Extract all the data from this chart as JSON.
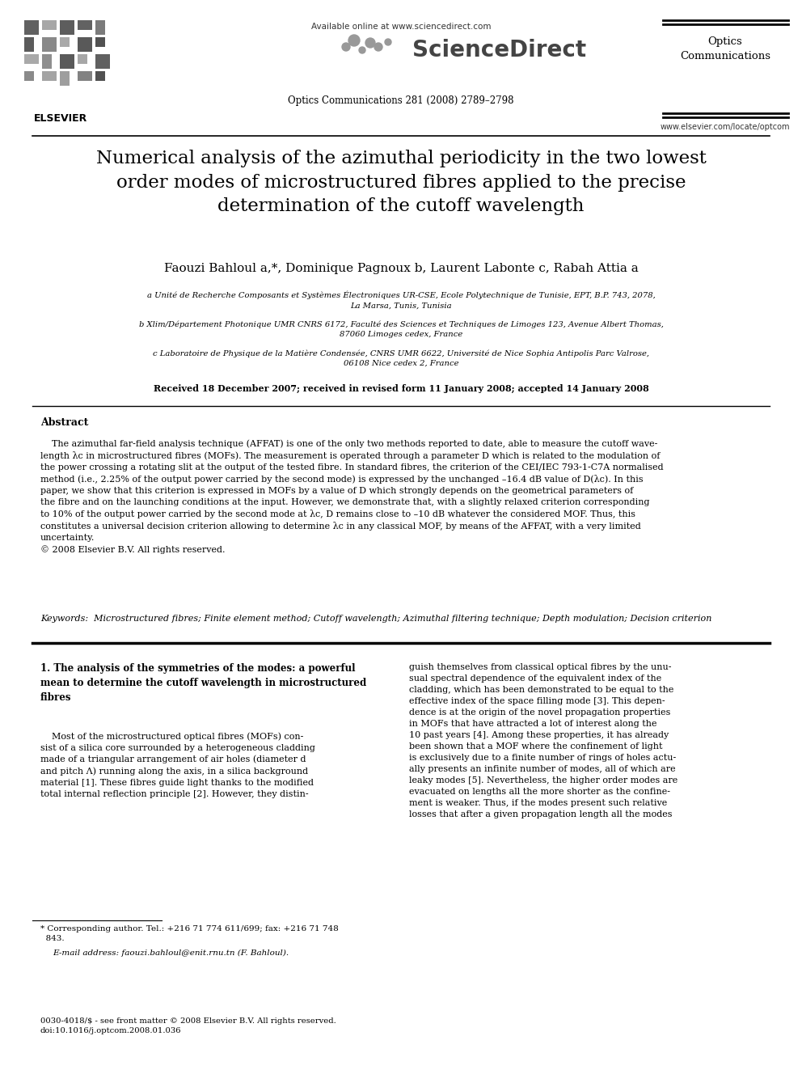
{
  "bg_color": "#ffffff",
  "available_online": "Available online at www.sciencedirect.com",
  "journal_info": "Optics Communications 281 (2008) 2789–2798",
  "optics_line1": "Optics",
  "optics_line2": "Communications",
  "website": "www.elsevier.com/locate/optcom",
  "title": "Numerical analysis of the azimuthal periodicity in the two lowest\norder modes of microstructured fibres applied to the precise\ndetermination of the cutoff wavelength",
  "authors": "Faouzi Bahloul a,*, Dominique Pagnoux b, Laurent Labonte c, Rabah Attia a",
  "affil_a": "a Unité de Recherche Composants et Systèmes Électroniques UR-CSE, Ecole Polytechnique de Tunisie, EPT, B.P. 743, 2078,\nLa Marsa, Tunis, Tunisia",
  "affil_b": "b Xlim/Département Photonique UMR CNRS 6172, Faculté des Sciences et Techniques de Limoges 123, Avenue Albert Thomas,\n87060 Limoges cedex, France",
  "affil_c": "c Laboratoire de Physique de la Matière Condensée, CNRS UMR 6622, Université de Nice Sophia Antipolis Parc Valrose,\n06108 Nice cedex 2, France",
  "received": "Received 18 December 2007; received in revised form 11 January 2008; accepted 14 January 2008",
  "abstract_title": "Abstract",
  "abstract_text": "    The azimuthal far-field analysis technique (AFFAT) is one of the only two methods reported to date, able to measure the cutoff wave-\nlength λc in microstructured fibres (MOFs). The measurement is operated through a parameter D which is related to the modulation of\nthe power crossing a rotating slit at the output of the tested fibre. In standard fibres, the criterion of the CEI/IEC 793-1-C7A normalised\nmethod (i.e., 2.25% of the output power carried by the second mode) is expressed by the unchanged –16.4 dB value of D(λc). In this\npaper, we show that this criterion is expressed in MOFs by a value of D which strongly depends on the geometrical parameters of\nthe fibre and on the launching conditions at the input. However, we demonstrate that, with a slightly relaxed criterion corresponding\nto 10% of the output power carried by the second mode at λc, D remains close to –10 dB whatever the considered MOF. Thus, this\nconstitutes a universal decision criterion allowing to determine λc in any classical MOF, by means of the AFFAT, with a very limited\nuncertainty.\n© 2008 Elsevier B.V. All rights reserved.",
  "keywords": "Keywords:  Microstructured fibres; Finite element method; Cutoff wavelength; Azimuthal filtering technique; Depth modulation; Decision criterion",
  "sec1_head": "1. The analysis of the symmetries of the modes: a powerful\nmean to determine the cutoff wavelength in microstructured\nfibres",
  "sec1_left": "    Most of the microstructured optical fibres (MOFs) con-\nsist of a silica core surrounded by a heterogeneous cladding\nmade of a triangular arrangement of air holes (diameter d\nand pitch Λ) running along the axis, in a silica background\nmaterial [1]. These fibres guide light thanks to the modified\ntotal internal reflection principle [2]. However, they distin-",
  "sec1_right": "guish themselves from classical optical fibres by the unu-\nsual spectral dependence of the equivalent index of the\ncladding, which has been demonstrated to be equal to the\neffective index of the space filling mode [3]. This depen-\ndence is at the origin of the novel propagation properties\nin MOFs that have attracted a lot of interest along the\n10 past years [4]. Among these properties, it has already\nbeen shown that a MOF where the confinement of light\nis exclusively due to a finite number of rings of holes actu-\nally presents an infinite number of modes, all of which are\nleaky modes [5]. Nevertheless, the higher order modes are\nevacuated on lengths all the more shorter as the confine-\nment is weaker. Thus, if the modes present such relative\nlosses that after a given propagation length all the modes",
  "footnote_star": "* Corresponding author. Tel.: +216 71 774 611/699; fax: +216 71 748\n  843.",
  "footnote_email": "E-mail address: faouzi.bahloul@enit.rnu.tn (F. Bahloul).",
  "footer": "0030-4018/$ - see front matter © 2008 Elsevier B.V. All rights reserved.\ndoi:10.1016/j.optcom.2008.01.036"
}
